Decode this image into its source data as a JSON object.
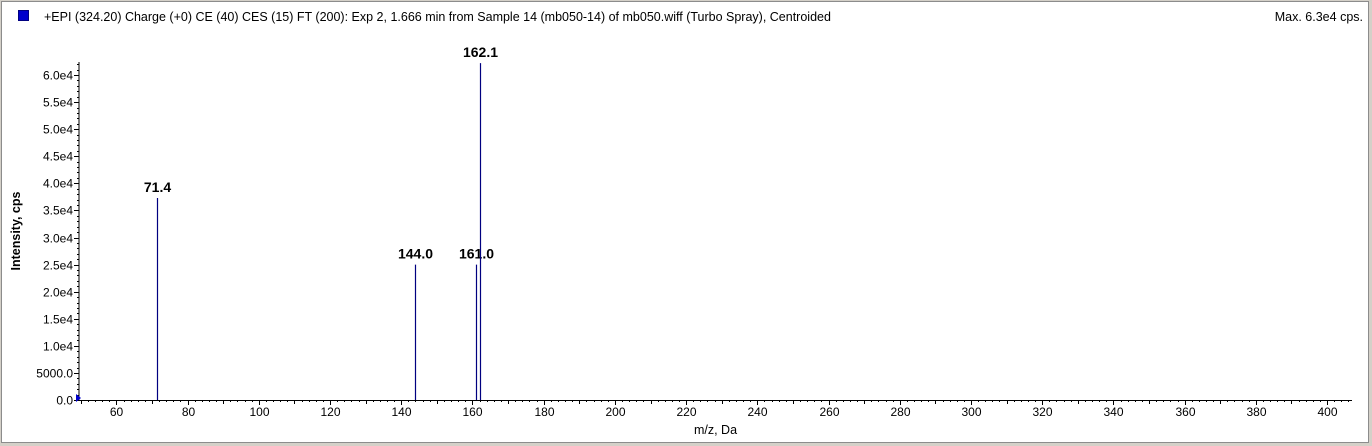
{
  "header": {
    "title": "+EPI (324.20) Charge (+0) CE (40) CES (15) FT (200): Exp 2, 1.666 min from Sample 14 (mb050-14) of mb050.wiff (Turbo Spray), Centroided",
    "max_label": "Max. 6.3e4 cps."
  },
  "colors": {
    "series": "#000080",
    "marker": "#0000cc"
  },
  "chart_data": {
    "type": "bar",
    "title": "+EPI (324.20) Charge (+0) CE (40) CES (15) FT (200): Exp 2, 1.666 min from Sample 14 (mb050-14) of mb050.wiff (Turbo Spray), Centroided",
    "xlabel": "m/z, Da",
    "ylabel": "Intensity, cps",
    "xlim": [
      49.5,
      407
    ],
    "ylim": [
      0,
      62400
    ],
    "x_ticks": [
      60,
      80,
      100,
      120,
      140,
      160,
      180,
      200,
      220,
      240,
      260,
      280,
      300,
      320,
      340,
      360,
      380,
      400
    ],
    "y_ticks": [
      {
        "value": 0,
        "label": "0.0"
      },
      {
        "value": 5000,
        "label": "5000.0"
      },
      {
        "value": 10000,
        "label": "1.0e4"
      },
      {
        "value": 15000,
        "label": "1.5e4"
      },
      {
        "value": 20000,
        "label": "2.0e4"
      },
      {
        "value": 25000,
        "label": "2.5e4"
      },
      {
        "value": 30000,
        "label": "3.0e4"
      },
      {
        "value": 35000,
        "label": "3.5e4"
      },
      {
        "value": 40000,
        "label": "4.0e4"
      },
      {
        "value": 45000,
        "label": "4.5e4"
      },
      {
        "value": 50000,
        "label": "5.0e4"
      },
      {
        "value": 55000,
        "label": "5.5e4"
      },
      {
        "value": 60000,
        "label": "6.0e4"
      }
    ],
    "peaks": [
      {
        "mz": 71.4,
        "intensity": 37300,
        "label": "71.4"
      },
      {
        "mz": 144.0,
        "intensity": 25000,
        "label": "144.0"
      },
      {
        "mz": 161.0,
        "intensity": 25000,
        "label": "161.0"
      },
      {
        "mz": 162.1,
        "intensity": 62200,
        "label": "162.1"
      }
    ],
    "grid": false,
    "legend": "top-left"
  }
}
